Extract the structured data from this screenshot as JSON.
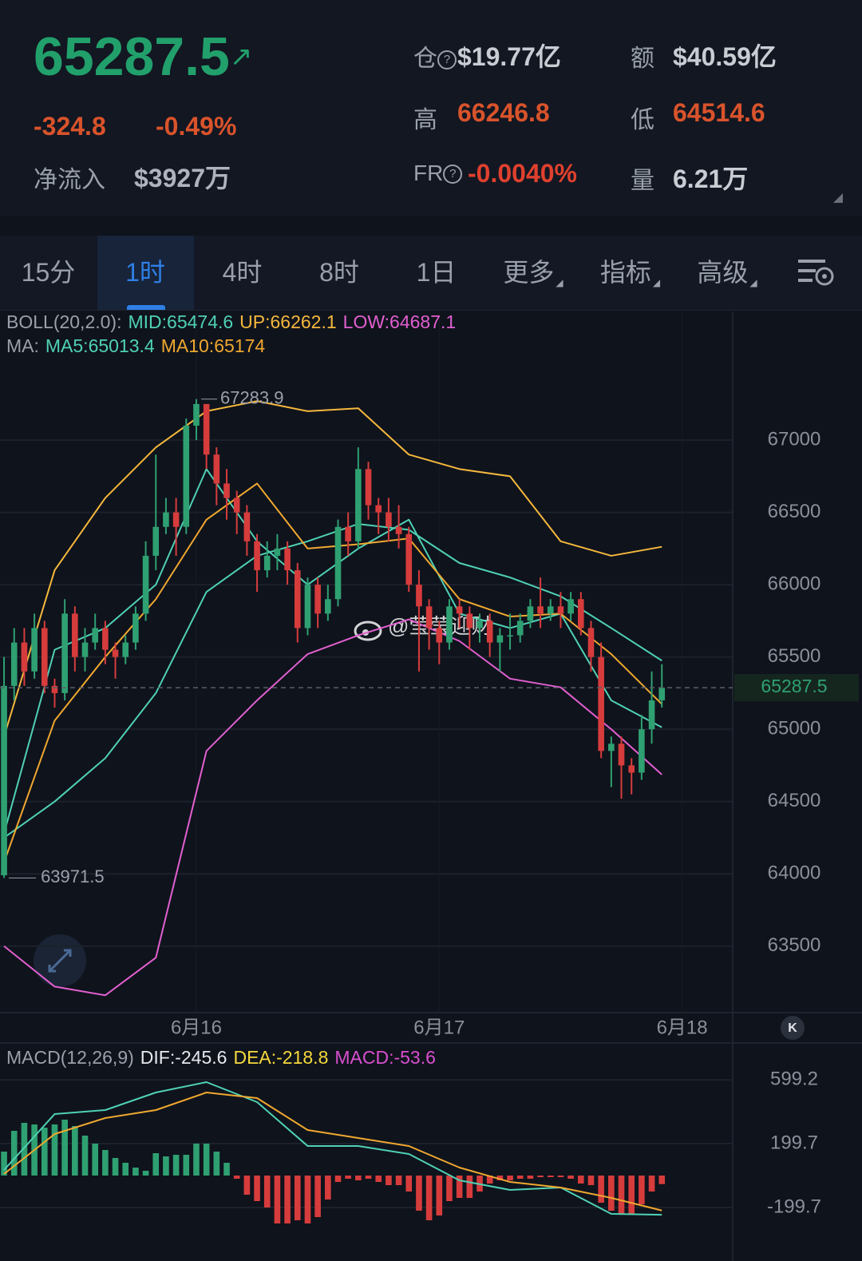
{
  "header": {
    "price": "65287.5",
    "change": "-324.8",
    "change_pct": "-0.49%",
    "inflow_label": "净流入",
    "inflow": "$3927万",
    "stats": [
      {
        "label": "仓",
        "value": "$19.77亿"
      },
      {
        "label": "额",
        "value": "$40.59亿"
      },
      {
        "label": "高",
        "value": "66246.8"
      },
      {
        "label": "低",
        "value": "64514.6"
      },
      {
        "label": "FR",
        "value": "-0.0040%"
      },
      {
        "label": "量",
        "value": "6.21万"
      }
    ]
  },
  "tabs": [
    "15分",
    "1时",
    "4时",
    "8时",
    "1日",
    "更多",
    "指标",
    "高级"
  ],
  "active_tab": 1,
  "watermark": "@莹莹迎财",
  "chart_data": [
    {
      "type": "candlestick",
      "up_color": "#2fa072",
      "down_color": "#d63c3c",
      "xlim": [
        -0.4,
        72
      ],
      "ylim": [
        63040,
        67890
      ],
      "xticks": [
        {
          "value": 19,
          "label": "6月16"
        },
        {
          "value": 43,
          "label": "6月17"
        },
        {
          "value": 67,
          "label": "6月18"
        }
      ],
      "yticks": [
        63500,
        64000,
        64500,
        65000,
        65500,
        66000,
        66500,
        67000
      ],
      "grid": true,
      "open": [
        63990,
        65300,
        65600,
        65400,
        65700,
        65300,
        65250,
        65800,
        65500,
        65600,
        65700,
        65550,
        65500,
        65600,
        65800,
        66200,
        66400,
        66500,
        66400,
        67100,
        67250,
        66900,
        66700,
        66600,
        66500,
        66300,
        66100,
        66200,
        66250,
        66100,
        65700,
        66000,
        65800,
        65900,
        66400,
        66300,
        66800,
        66550,
        66500,
        66400,
        66350,
        66000,
        65850,
        65700,
        65600,
        65850,
        65800,
        65700,
        65750,
        65600,
        65650,
        65650,
        65750,
        65850,
        65800,
        65850,
        65800,
        65900,
        65700,
        65500,
        64850,
        64900,
        64750,
        64700,
        65000,
        65200
      ],
      "high": [
        65500,
        65700,
        65700,
        65800,
        65750,
        65350,
        65900,
        65850,
        65700,
        65800,
        65750,
        65600,
        65650,
        65850,
        66300,
        66900,
        66600,
        66600,
        67150,
        67283.9,
        67250,
        66950,
        66800,
        66650,
        66550,
        66350,
        66300,
        66350,
        66300,
        66150,
        66050,
        66050,
        66000,
        66450,
        66500,
        66950,
        66850,
        66600,
        66600,
        66550,
        66400,
        66100,
        65900,
        65750,
        65900,
        65900,
        65850,
        65800,
        65800,
        65700,
        65800,
        65800,
        65900,
        66050,
        65900,
        65950,
        65950,
        65950,
        65750,
        65600,
        64950,
        64950,
        64800,
        65100,
        65400,
        65450
      ],
      "low": [
        63971.5,
        65200,
        65300,
        65350,
        65250,
        65150,
        65200,
        65400,
        65400,
        65550,
        65450,
        65350,
        65450,
        65550,
        65750,
        66100,
        66350,
        66200,
        66350,
        67000,
        66800,
        66550,
        66450,
        66350,
        66200,
        65950,
        66050,
        66100,
        66000,
        65600,
        65650,
        65700,
        65750,
        65850,
        66200,
        66250,
        66450,
        66350,
        66300,
        66250,
        65950,
        65400,
        65550,
        65450,
        65550,
        65700,
        65550,
        65600,
        65500,
        65400,
        65550,
        65600,
        65700,
        65700,
        65750,
        65700,
        65750,
        65650,
        65400,
        64800,
        64600,
        64520,
        64550,
        64650,
        64900,
        65150
      ],
      "close": [
        65300,
        65600,
        65400,
        65700,
        65300,
        65250,
        65800,
        65500,
        65600,
        65700,
        65550,
        65500,
        65600,
        65800,
        66200,
        66400,
        66500,
        66400,
        67100,
        67250,
        66900,
        66700,
        66600,
        66500,
        66300,
        66100,
        66200,
        66250,
        66100,
        65700,
        66000,
        65800,
        65900,
        66400,
        66300,
        66800,
        66550,
        66500,
        66400,
        66350,
        66000,
        65850,
        65700,
        65600,
        65850,
        65800,
        65700,
        65750,
        65600,
        65650,
        65650,
        65750,
        65850,
        65800,
        65850,
        65800,
        65900,
        65700,
        65500,
        64850,
        64900,
        64750,
        64700,
        65000,
        65200,
        65287.5
      ],
      "boll": {
        "title": "BOLL(20,2.0):",
        "series": [
          {
            "name": "MID:",
            "color": "#4fd1b5",
            "x": [
              0,
              5,
              10,
              15,
              20,
              25,
              30,
              35,
              40,
              45,
              50,
              55,
              60,
              65
            ],
            "values": [
              64250,
              64500,
              64800,
              65250,
              65950,
              66200,
              66300,
              66420,
              66380,
              66150,
              66050,
              65920,
              65700,
              65474.6
            ]
          },
          {
            "name": "UP:",
            "color": "#f5b83d",
            "x": [
              0,
              5,
              10,
              15,
              20,
              25,
              30,
              35,
              40,
              45,
              50,
              55,
              60,
              65
            ],
            "values": [
              64950,
              66100,
              66600,
              66950,
              67200,
              67270,
              67200,
              67220,
              66900,
              66800,
              66750,
              66300,
              66200,
              66262.1
            ]
          },
          {
            "name": "LOW:",
            "color": "#e25fd0",
            "x": [
              0,
              5,
              10,
              15,
              20,
              25,
              30,
              35,
              40,
              45,
              50,
              55,
              60,
              65
            ],
            "values": [
              63500,
              63220,
              63160,
              63420,
              64850,
              65200,
              65520,
              65650,
              65760,
              65610,
              65350,
              65290,
              65000,
              64687.1
            ]
          }
        ]
      },
      "ma": {
        "title": "MA:",
        "series": [
          {
            "name": "MA5:",
            "color": "#4fd1b5",
            "x": [
              0,
              5,
              10,
              15,
              20,
              25,
              30,
              35,
              40,
              45,
              50,
              55,
              60,
              65
            ],
            "values": [
              64280,
              65550,
              65700,
              66000,
              66800,
              66300,
              66000,
              66250,
              66450,
              65800,
              65700,
              65800,
              65200,
              65013.4
            ]
          },
          {
            "name": "MA10:",
            "color": "#f0a830",
            "x": [
              0,
              5,
              10,
              15,
              20,
              25,
              30,
              35,
              40,
              45,
              50,
              55,
              60,
              65
            ],
            "values": [
              64080,
              65060,
              65500,
              65900,
              66450,
              66700,
              66250,
              66280,
              66320,
              65900,
              65780,
              65800,
              65520,
              65174.0
            ]
          }
        ]
      }
    },
    {
      "type": "macd",
      "title": "MACD(12,26,9)",
      "ylim": [
        -480,
        810
      ],
      "yticks": [
        599.2,
        199.7,
        -199.7
      ],
      "grid": true,
      "histogram": {
        "name": "MACD:",
        "color": "#d84fd0",
        "up_color": "#2fa072",
        "down_color": "#d63c3c",
        "values": [
          150,
          280,
          330,
          320,
          300,
          320,
          350,
          310,
          250,
          200,
          160,
          110,
          80,
          50,
          30,
          140,
          120,
          130,
          130,
          200,
          200,
          150,
          80,
          -20,
          -120,
          -160,
          -200,
          -300,
          -300,
          -280,
          -300,
          -260,
          -150,
          -40,
          -20,
          -30,
          -20,
          -40,
          -60,
          -60,
          -100,
          -220,
          -280,
          -250,
          -160,
          -140,
          -140,
          -100,
          -50,
          -30,
          -30,
          -20,
          -20,
          -10,
          -10,
          -10,
          -20,
          -50,
          -60,
          -170,
          -220,
          -240,
          -240,
          -180,
          -100,
          -53.6
        ]
      },
      "series": [
        {
          "name": "DIF:",
          "color": "#e6e8ec",
          "line_color": "#4fd1b5",
          "x": [
            0,
            5,
            10,
            15,
            20,
            25,
            30,
            35,
            40,
            45,
            50,
            55,
            60,
            65
          ],
          "values": [
            35,
            385,
            410,
            520,
            585,
            460,
            185,
            185,
            135,
            -30,
            -90,
            -75,
            -240,
            -245.6
          ]
        },
        {
          "name": "DEA:",
          "color": "#f5d83d",
          "line_color": "#f0a830",
          "x": [
            0,
            5,
            10,
            15,
            20,
            25,
            30,
            35,
            40,
            45,
            50,
            55,
            60,
            65
          ],
          "values": [
            10,
            260,
            360,
            410,
            520,
            485,
            285,
            235,
            185,
            50,
            -40,
            -75,
            -140,
            -218.8
          ]
        }
      ]
    }
  ]
}
